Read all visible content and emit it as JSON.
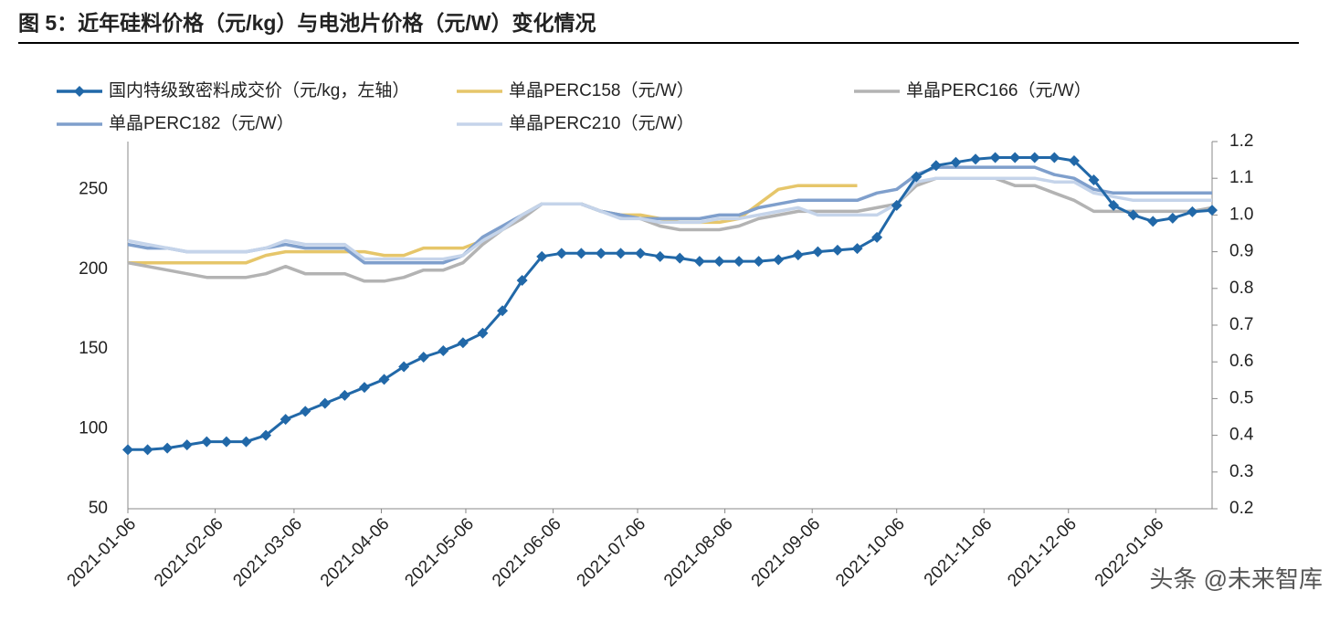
{
  "chart_data": {
    "type": "line",
    "title": "图 5：近年硅料价格（元/kg）与电池片价格（元/W）变化情况",
    "watermark": "头条 @未来智库",
    "x": [
      "2021-01-06",
      "2021-01-13",
      "2021-01-20",
      "2021-01-27",
      "2021-02-03",
      "2021-02-10",
      "2021-02-17",
      "2021-02-24",
      "2021-03-03",
      "2021-03-10",
      "2021-03-17",
      "2021-03-24",
      "2021-03-31",
      "2021-04-07",
      "2021-04-14",
      "2021-04-21",
      "2021-04-28",
      "2021-05-05",
      "2021-05-12",
      "2021-05-19",
      "2021-05-26",
      "2021-06-02",
      "2021-06-09",
      "2021-06-16",
      "2021-06-23",
      "2021-06-30",
      "2021-07-07",
      "2021-07-14",
      "2021-07-21",
      "2021-07-28",
      "2021-08-04",
      "2021-08-11",
      "2021-08-18",
      "2021-08-25",
      "2021-09-01",
      "2021-09-08",
      "2021-09-15",
      "2021-09-22",
      "2021-09-29",
      "2021-10-06",
      "2021-10-13",
      "2021-10-20",
      "2021-10-27",
      "2021-11-03",
      "2021-11-10",
      "2021-11-17",
      "2021-11-24",
      "2021-12-01",
      "2021-12-08",
      "2021-12-15",
      "2021-12-22",
      "2021-12-29",
      "2022-01-05",
      "2022-01-12",
      "2022-01-19",
      "2022-01-26"
    ],
    "xlim": [
      "2021-01-06",
      "2022-01-26"
    ],
    "xticks": [
      "2021-01-06",
      "2021-02-06",
      "2021-03-06",
      "2021-04-06",
      "2021-05-06",
      "2021-06-06",
      "2021-07-06",
      "2021-08-06",
      "2021-09-06",
      "2021-10-06",
      "2021-11-06",
      "2021-12-06",
      "2022-01-06"
    ],
    "ylim": [
      50,
      280
    ],
    "yticks": [
      50,
      100,
      150,
      200,
      250
    ],
    "y2lim": [
      0.2,
      1.2
    ],
    "y2ticks": [
      0.2,
      0.3,
      0.4,
      0.5,
      0.6,
      0.7,
      0.8,
      0.9,
      {
        "value": 1,
        "label": "1.0"
      },
      1.1,
      1.2
    ],
    "legend": "top",
    "series": [
      {
        "name": "国内特级致密料成交价（元/kg，左轴）",
        "color": "#2168a8",
        "marker": "diamond",
        "values": [
          87,
          87,
          88,
          90,
          92,
          92,
          92,
          96,
          106,
          111,
          116,
          121,
          126,
          131,
          139,
          145,
          149,
          154,
          160,
          174,
          193,
          208,
          210,
          210,
          210,
          210,
          210,
          208,
          207,
          205,
          205,
          205,
          205,
          206,
          209,
          211,
          212,
          213,
          220,
          240,
          258,
          265,
          267,
          269,
          270,
          270,
          270,
          270,
          268,
          256,
          240,
          234,
          230,
          232,
          236,
          237
        ]
      },
      {
        "name": "单晶PERC158（元/W）",
        "color": "#e6c66a",
        "axis": "y2",
        "values": [
          0.87,
          0.87,
          0.87,
          0.87,
          0.87,
          0.87,
          0.87,
          0.89,
          0.9,
          0.9,
          0.9,
          0.9,
          0.9,
          0.89,
          0.89,
          0.91,
          0.91,
          0.91,
          0.93,
          0.96,
          1.0,
          1.03,
          1.03,
          1.03,
          1.01,
          1.0,
          1.0,
          0.99,
          0.98,
          0.98,
          0.98,
          0.99,
          1.03,
          1.07,
          1.08,
          1.08,
          1.08,
          1.08,
          null,
          null,
          null,
          null,
          null,
          null,
          null,
          null,
          null,
          null,
          null,
          null,
          null,
          null,
          null,
          null,
          null,
          null
        ]
      },
      {
        "name": "单晶PERC166（元/W）",
        "color": "#b3b3b3",
        "axis": "y2",
        "values": [
          0.87,
          0.86,
          0.85,
          0.84,
          0.83,
          0.83,
          0.83,
          0.84,
          0.86,
          0.84,
          0.84,
          0.84,
          0.82,
          0.82,
          0.83,
          0.85,
          0.85,
          0.87,
          0.92,
          0.96,
          0.99,
          1.03,
          1.03,
          1.03,
          1.01,
          1.0,
          0.99,
          0.97,
          0.96,
          0.96,
          0.96,
          0.97,
          0.99,
          1.0,
          1.01,
          1.01,
          1.01,
          1.01,
          1.02,
          1.03,
          1.08,
          1.1,
          1.1,
          1.1,
          1.1,
          1.08,
          1.08,
          1.06,
          1.04,
          1.01,
          1.01,
          1.01,
          1.01,
          1.01,
          1.01,
          1.02
        ]
      },
      {
        "name": "单晶PERC182（元/W）",
        "color": "#7f9fcc",
        "axis": "y2",
        "values": [
          0.92,
          0.91,
          0.91,
          0.9,
          0.9,
          0.9,
          0.9,
          0.91,
          0.92,
          0.91,
          0.91,
          0.91,
          0.87,
          0.87,
          0.87,
          0.87,
          0.87,
          0.89,
          0.94,
          0.97,
          1.0,
          1.03,
          1.03,
          1.03,
          1.01,
          1.0,
          0.99,
          0.99,
          0.99,
          0.99,
          1.0,
          1.0,
          1.02,
          1.03,
          1.04,
          1.04,
          1.04,
          1.04,
          1.06,
          1.07,
          1.11,
          1.13,
          1.13,
          1.13,
          1.13,
          1.13,
          1.13,
          1.11,
          1.1,
          1.07,
          1.06,
          1.06,
          1.06,
          1.06,
          1.06,
          1.06
        ]
      },
      {
        "name": "单晶PERC210（元/W）",
        "color": "#c5d4ea",
        "axis": "y2",
        "values": [
          0.93,
          0.92,
          0.91,
          0.9,
          0.9,
          0.9,
          0.9,
          0.91,
          0.93,
          0.92,
          0.92,
          0.92,
          0.88,
          0.88,
          0.88,
          0.88,
          0.88,
          0.89,
          0.93,
          0.96,
          1.0,
          1.03,
          1.03,
          1.03,
          1.01,
          0.99,
          0.99,
          0.98,
          0.98,
          0.98,
          0.99,
          0.99,
          1.0,
          1.01,
          1.02,
          1.0,
          1.0,
          1.0,
          1.0,
          1.03,
          1.09,
          1.1,
          1.1,
          1.1,
          1.1,
          1.1,
          1.1,
          1.09,
          1.09,
          1.06,
          1.05,
          1.04,
          1.04,
          1.04,
          1.04,
          1.04
        ]
      }
    ]
  }
}
